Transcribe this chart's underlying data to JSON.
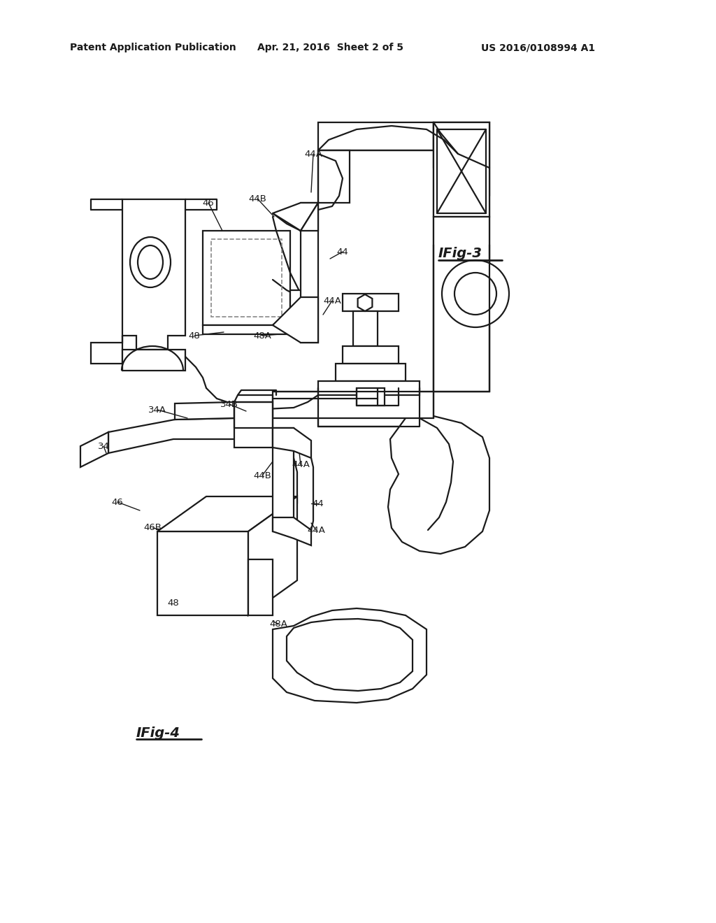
{
  "bg": "#ffffff",
  "lc": "#1a1a1a",
  "dc": "#888888",
  "header1": "Patent Application Publication",
  "header2": "Apr. 21, 2016  Sheet 2 of 5",
  "header3": "US 2016/0108994 A1",
  "fig3": "IFig-3",
  "fig4": "IFig-4",
  "lw": 1.6,
  "lwd": 1.2
}
